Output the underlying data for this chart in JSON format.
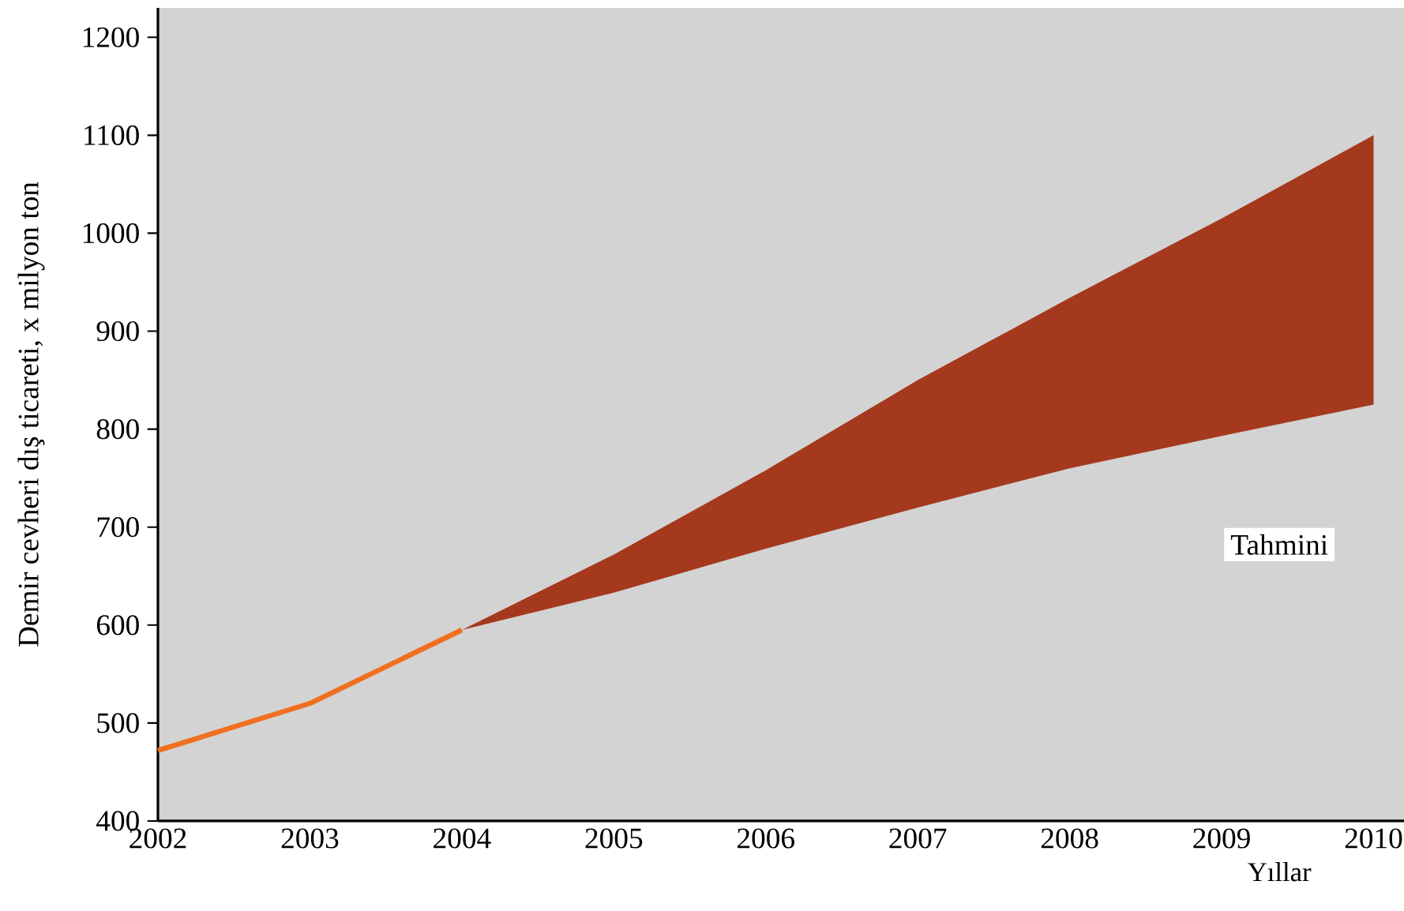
{
  "chart_data": {
    "type": "line",
    "xlabel": "Yıllar",
    "ylabel": "Demir cevheri dış ticareti, x milyon ton",
    "annotations": [
      "Tahmini"
    ],
    "xlim": [
      2002,
      2010.2
    ],
    "ylim": [
      400,
      1230
    ],
    "xticks": [
      2002,
      2003,
      2004,
      2005,
      2006,
      2007,
      2008,
      2009,
      2010
    ],
    "yticks": [
      400,
      500,
      600,
      700,
      800,
      900,
      1000,
      1100,
      1200
    ],
    "grid": false,
    "series": [
      {
        "color": "#f07020",
        "x": [
          2002,
          2003,
          2004
        ],
        "values": [
          472,
          520,
          595
        ]
      },
      {
        "type": "area",
        "color": "#a5391e",
        "x": [
          2004,
          2005,
          2006,
          2007,
          2008,
          2009,
          2010
        ],
        "values": [
          null,
          null,
          null,
          null,
          null,
          null,
          null
        ],
        "lower": [
          595,
          633,
          678,
          720,
          760,
          793,
          825
        ],
        "upper": [
          595,
          672,
          758,
          850,
          934,
          1015,
          1100
        ]
      }
    ]
  }
}
